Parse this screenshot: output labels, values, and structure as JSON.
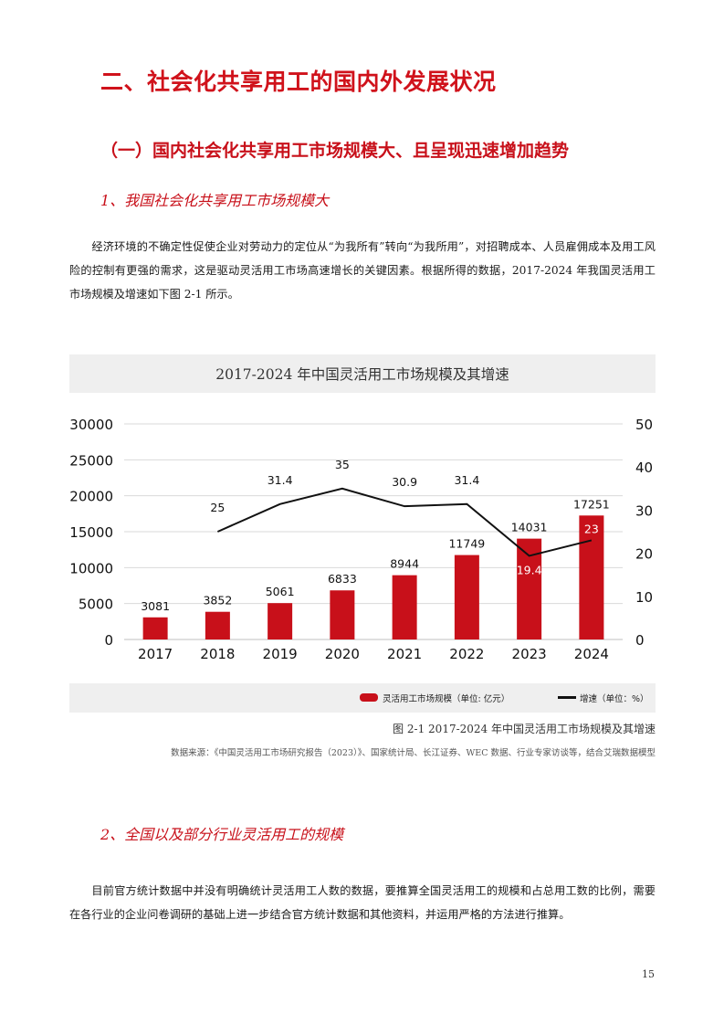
{
  "heading1": "二、社会化共享用工的国内外发展状况",
  "heading2": "（一）国内社会化共享用工市场规模大、且呈现迅速增加趋势",
  "heading3": "1、我国社会化共享用工市场规模大",
  "paragraph1": "经济环境的不确定性促使企业对劳动力的定位从“为我所有”转向“为我所用”，对招聘成本、人员雇佣成本及用工风险的控制有更强的需求，这是驱动灵活用工市场高速增长的关键因素。根据所得的数据，2017-2024 年我国灵活用工市场规模及增速如下图 2-1 所示。",
  "chart_data": {
    "type": "bar",
    "title": "2017-2024 年中国灵活用工市场规模及其增速",
    "categories": [
      "2017",
      "2018",
      "2019",
      "2020",
      "2021",
      "2022",
      "2023",
      "2024"
    ],
    "series": [
      {
        "name": "灵活用工市场规模（单位: 亿元）",
        "type": "bar",
        "axis": "left",
        "values": [
          3081,
          3852,
          5061,
          6833,
          8944,
          11749,
          14031,
          17251
        ],
        "color": "#c8101a"
      },
      {
        "name": "增速（单位：%）",
        "type": "line",
        "axis": "right",
        "values": [
          null,
          25,
          31.4,
          35,
          30.9,
          31.4,
          19.4,
          23
        ],
        "color": "#111111"
      }
    ],
    "ylim": [
      0,
      30000
    ],
    "yticks": [
      0,
      5000,
      10000,
      15000,
      20000,
      25000,
      30000
    ],
    "y2lim": [
      0,
      50
    ],
    "y2ticks": [
      0,
      10,
      20,
      30,
      40,
      50
    ],
    "legend_position": "bottom-right",
    "grid": true
  },
  "caption": "图 2-1 2017-2024 年中国灵活用工市场规模及其增速",
  "source": "数据来源：《中国灵活用工市场研究报告（2023）》、国家统计局、长江证券、WEC 数据、行业专家访谈等，结合艾瑞数据模型",
  "heading3b": "2、全国以及部分行业灵活用工的规模",
  "paragraph2": "目前官方统计数据中并没有明确统计灵活用工人数的数据，要推算全国灵活用工的规模和占总用工数的比例，需要在各行业的企业问卷调研的基础上进一步结合官方统计数据和其他资料，并运用严格的方法进行推算。",
  "page_number": "15"
}
